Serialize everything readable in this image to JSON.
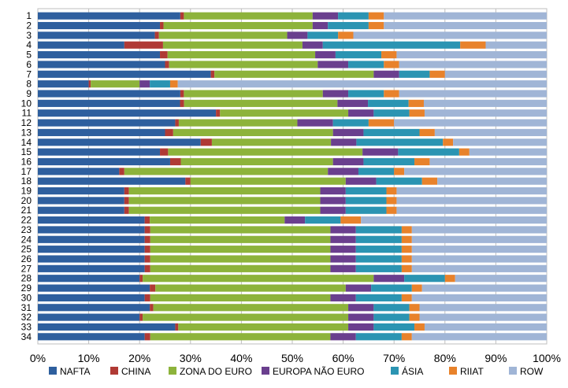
{
  "chart_data": {
    "type": "bar",
    "orientation": "horizontal",
    "stacked": "percent",
    "title": "",
    "xlabel": "",
    "ylabel": "",
    "xlim": [
      0,
      100
    ],
    "x_ticks": [
      "0%",
      "10%",
      "20%",
      "30%",
      "40%",
      "50%",
      "60%",
      "70%",
      "80%",
      "90%",
      "100%"
    ],
    "grid": "vertical",
    "legend_position": "bottom",
    "categories": [
      "1",
      "2",
      "3",
      "4",
      "5",
      "6",
      "7",
      "8",
      "9",
      "10",
      "11",
      "12",
      "13",
      "14",
      "15",
      "16",
      "17",
      "18",
      "19",
      "20",
      "21",
      "22",
      "23",
      "24",
      "25",
      "26",
      "27",
      "28",
      "29",
      "30",
      "31",
      "32",
      "33",
      "34"
    ],
    "series": [
      {
        "name": "NAFTA",
        "color": "#2e5f9e",
        "values": [
          28,
          24,
          23,
          17,
          24,
          25,
          34,
          10,
          28,
          28,
          35,
          27,
          25,
          32,
          24,
          26,
          16,
          29,
          17,
          17,
          17,
          21,
          21,
          21,
          21,
          21,
          21,
          20,
          22,
          21,
          22,
          20,
          27,
          21
        ]
      },
      {
        "name": "CHINA",
        "color": "#b03a35",
        "values": [
          0.7,
          0.7,
          0.8,
          7.6,
          1.5,
          0.8,
          0.7,
          0.4,
          0.7,
          0.8,
          0.8,
          0.7,
          1.6,
          2.2,
          1.6,
          2.1,
          1.0,
          1.0,
          0.9,
          0.9,
          0.9,
          1.0,
          1.1,
          1.1,
          1.1,
          1.1,
          1.1,
          0.6,
          1.1,
          1.1,
          0.7,
          0.6,
          0.6,
          1.1
        ]
      },
      {
        "name": "ZONA DO EURO",
        "color": "#8db33b",
        "values": [
          25.3,
          29.3,
          25.2,
          27.4,
          29.0,
          29.2,
          31.3,
          9.6,
          27.3,
          30.2,
          25.2,
          23.3,
          31.4,
          23.4,
          38.2,
          29.9,
          40.0,
          30.5,
          37.6,
          37.6,
          37.6,
          26.5,
          35.4,
          35.4,
          35.4,
          35.4,
          35.4,
          45.4,
          37.4,
          35.4,
          38.3,
          40.4,
          33.4,
          35.4
        ]
      },
      {
        "name": "EUROPA NÃO EURO",
        "color": "#6a3f8e",
        "values": [
          5,
          3,
          4,
          4,
          4,
          6,
          5,
          2,
          5,
          6,
          5,
          7,
          6,
          5,
          7,
          6,
          6,
          6,
          5,
          5,
          5,
          4,
          5,
          5,
          5,
          5,
          5,
          6,
          5,
          5,
          5,
          5,
          5,
          5
        ]
      },
      {
        "name": "ÁSIA",
        "color": "#2b94b2",
        "values": [
          6,
          8,
          6,
          27,
          9,
          7,
          6,
          4,
          7,
          8,
          7,
          7,
          11,
          17,
          12,
          10,
          7,
          9,
          8,
          8,
          8,
          7,
          9,
          9,
          9,
          9,
          9,
          8,
          8,
          9,
          7,
          7,
          8,
          9
        ]
      },
      {
        "name": "RIIAT",
        "color": "#e8822b",
        "values": [
          3,
          3,
          3,
          5,
          3,
          3,
          3,
          1.5,
          3,
          3,
          3,
          5,
          3,
          2,
          2,
          3,
          2,
          3,
          2,
          2,
          2,
          4,
          2,
          2,
          2,
          2,
          2,
          2,
          2,
          2,
          2,
          2,
          2,
          2
        ]
      },
      {
        "name": "ROW",
        "color": "#a0b5d6",
        "values": [
          32,
          32,
          38,
          12,
          29.5,
          29,
          20,
          72.5,
          29,
          24.2,
          24,
          30,
          22,
          18.4,
          15.2,
          23,
          28,
          21.5,
          29.5,
          29.5,
          29.5,
          36.5,
          26.5,
          26.5,
          26.5,
          26.5,
          26.5,
          18,
          24.5,
          26.5,
          25,
          25,
          24,
          26.5
        ]
      }
    ]
  }
}
